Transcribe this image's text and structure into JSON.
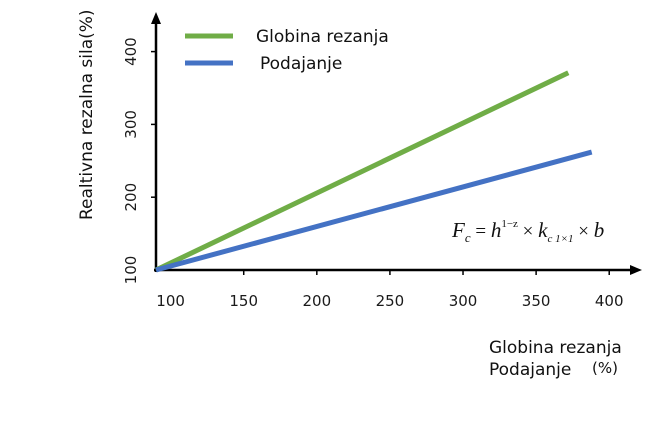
{
  "chart_data": {
    "type": "line",
    "title": "",
    "ylabel": "Realtivna rezalna sila(%)",
    "xlabel_line1": "Globina rezanja",
    "xlabel_line2": "Podajanje",
    "xlabel_unit": "(%)",
    "xlim": [
      90,
      420
    ],
    "ylim": [
      100,
      430
    ],
    "xticks": [
      100,
      150,
      200,
      250,
      300,
      350,
      400
    ],
    "yticks": [
      100,
      200,
      300,
      400
    ],
    "legend_position": "top-left",
    "series": [
      {
        "name": "Globina rezanja",
        "color": "#70ad47",
        "x": [
          90,
          372
        ],
        "y": [
          100,
          371
        ]
      },
      {
        "name": "Podajanje",
        "color": "#4472c4",
        "x": [
          90,
          388
        ],
        "y": [
          100,
          262
        ]
      }
    ],
    "annotation": {
      "F": "F",
      "c": "c",
      "eq": " = ",
      "h": "h",
      "exp": "1−z",
      "times1": " × ",
      "k": "k",
      "ksub": "c 1×1",
      "times2": " × ",
      "b": "b"
    }
  }
}
